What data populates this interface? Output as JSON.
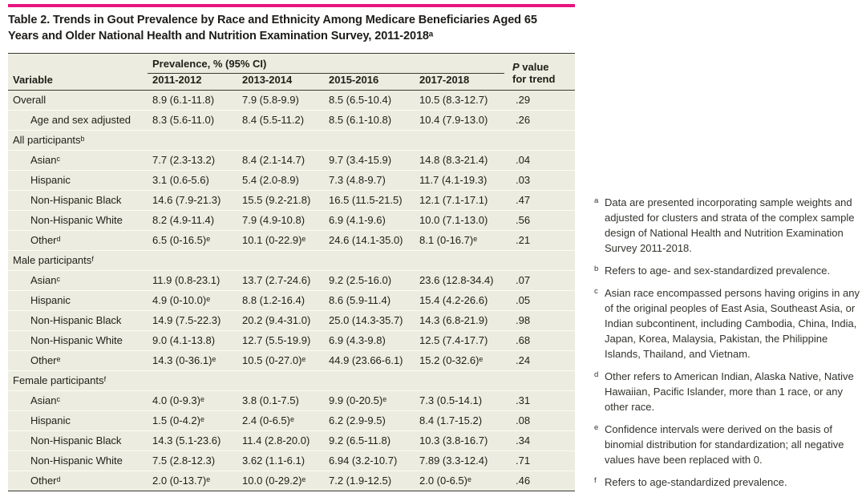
{
  "title": "Table 2. Trends in Gout Prevalence by Race and Ethnicity Among Medicare Beneficiaries Aged 65 Years and Older National Health and Nutrition Examination Survey, 2011-2018ᵃ",
  "colors": {
    "accent": "#e8147f",
    "table_bg": "#ecede0",
    "rule_dark": "#3a392f",
    "row_separator": "#fcfcf5",
    "text": "#21201a"
  },
  "table": {
    "header": {
      "variable": "Variable",
      "prevalence_span": "Prevalence, % (95% CI)",
      "years": [
        "2011-2012",
        "2013-2014",
        "2015-2016",
        "2017-2018"
      ],
      "p_italic": "P",
      "p_rest": " value",
      "p_line2": "for trend"
    },
    "rows": [
      {
        "label": "Overall",
        "indent": false,
        "section": false,
        "values": [
          "8.9 (6.1-11.8)",
          "7.9 (5.8-9.9)",
          "8.5 (6.5-10.4)",
          "10.5 (8.3-12.7)"
        ],
        "p": ".29"
      },
      {
        "label": "Age and sex adjusted",
        "indent": true,
        "section": false,
        "values": [
          "8.3 (5.6-11.0)",
          "8.4 (5.5-11.2)",
          "8.5 (6.1-10.8)",
          "10.4 (7.9-13.0)"
        ],
        "p": ".26"
      },
      {
        "label": "All participantsᵇ",
        "indent": false,
        "section": true,
        "values": [],
        "p": ""
      },
      {
        "label": "Asianᶜ",
        "indent": true,
        "section": false,
        "values": [
          "7.7 (2.3-13.2)",
          "8.4 (2.1-14.7)",
          "9.7 (3.4-15.9)",
          "14.8 (8.3-21.4)"
        ],
        "p": ".04"
      },
      {
        "label": "Hispanic",
        "indent": true,
        "section": false,
        "values": [
          "3.1 (0.6-5.6)",
          "5.4 (2.0-8.9)",
          "7.3 (4.8-9.7)",
          "11.7 (4.1-19.3)"
        ],
        "p": ".03"
      },
      {
        "label": "Non-Hispanic Black",
        "indent": true,
        "section": false,
        "values": [
          "14.6 (7.9-21.3)",
          "15.5 (9.2-21.8)",
          "16.5 (11.5-21.5)",
          "12.1 (7.1-17.1)"
        ],
        "p": ".47"
      },
      {
        "label": "Non-Hispanic White",
        "indent": true,
        "section": false,
        "values": [
          "8.2 (4.9-11.4)",
          "7.9 (4.9-10.8)",
          "6.9 (4.1-9.6)",
          "10.0 (7.1-13.0)"
        ],
        "p": ".56"
      },
      {
        "label": "Otherᵈ",
        "indent": true,
        "section": false,
        "values": [
          "6.5 (0-16.5)ᵉ",
          "10.1 (0-22.9)ᵉ",
          "24.6 (14.1-35.0)",
          "8.1 (0-16.7)ᵉ"
        ],
        "p": ".21"
      },
      {
        "label": "Male participantsᶠ",
        "indent": false,
        "section": true,
        "values": [],
        "p": ""
      },
      {
        "label": "Asianᶜ",
        "indent": true,
        "section": false,
        "values": [
          "11.9 (0.8-23.1)",
          "13.7 (2.7-24.6)",
          "9.2 (2.5-16.0)",
          "23.6 (12.8-34.4)"
        ],
        "p": ".07"
      },
      {
        "label": "Hispanic",
        "indent": true,
        "section": false,
        "values": [
          "4.9 (0-10.0)ᵉ",
          "8.8 (1.2-16.4)",
          "8.6 (5.9-11.4)",
          "15.4 (4.2-26.6)"
        ],
        "p": ".05"
      },
      {
        "label": "Non-Hispanic Black",
        "indent": true,
        "section": false,
        "values": [
          "14.9 (7.5-22.3)",
          "20.2 (9.4-31.0)",
          "25.0 (14.3-35.7)",
          "14.3 (6.8-21.9)"
        ],
        "p": ".98"
      },
      {
        "label": "Non-Hispanic White",
        "indent": true,
        "section": false,
        "values": [
          "9.0 (4.1-13.8)",
          "12.7 (5.5-19.9)",
          "6.9 (4.3-9.8)",
          "12.5 (7.4-17.7)"
        ],
        "p": ".68"
      },
      {
        "label": "Otherᵉ",
        "indent": true,
        "section": false,
        "values": [
          "14.3 (0-36.1)ᵉ",
          "10.5 (0-27.0)ᵉ",
          "44.9 (23.66-6.1)",
          "15.2 (0-32.6)ᵉ"
        ],
        "p": ".24"
      },
      {
        "label": "Female participantsᶠ",
        "indent": false,
        "section": true,
        "values": [],
        "p": ""
      },
      {
        "label": "Asianᶜ",
        "indent": true,
        "section": false,
        "values": [
          "4.0 (0-9.3)ᵉ",
          "3.8 (0.1-7.5)",
          "9.9 (0-20.5)ᵉ",
          "7.3 (0.5-14.1)"
        ],
        "p": ".31"
      },
      {
        "label": "Hispanic",
        "indent": true,
        "section": false,
        "values": [
          "1.5 (0-4.2)ᵉ",
          "2.4 (0-6.5)ᵉ",
          "6.2 (2.9-9.5)",
          "8.4 (1.7-15.2)"
        ],
        "p": ".08"
      },
      {
        "label": "Non-Hispanic Black",
        "indent": true,
        "section": false,
        "values": [
          "14.3 (5.1-23.6)",
          "11.4 (2.8-20.0)",
          "9.2 (6.5-11.8)",
          "10.3 (3.8-16.7)"
        ],
        "p": ".34"
      },
      {
        "label": "Non-Hispanic White",
        "indent": true,
        "section": false,
        "values": [
          "7.5 (2.8-12.3)",
          "3.62 (1.1-6.1)",
          "6.94 (3.2-10.7)",
          "7.89 (3.3-12.4)"
        ],
        "p": ".71"
      },
      {
        "label": "Otherᵈ",
        "indent": true,
        "section": false,
        "values": [
          "2.0 (0-13.7)ᵉ",
          "10.0 (0-29.2)ᵉ",
          "7.2 (1.9-12.5)",
          "2.0 (0-6.5)ᵉ"
        ],
        "p": ".46"
      }
    ]
  },
  "footnotes": [
    {
      "marker": "a",
      "text": "Data are presented incorporating sample weights and adjusted for clusters and strata of the complex sample design of National Health and Nutrition Examination Survey 2011-2018."
    },
    {
      "marker": "b",
      "text": "Refers to age- and sex-standardized prevalence."
    },
    {
      "marker": "c",
      "text": "Asian race encompassed persons having origins in any of the original peoples of East Asia, Southeast Asia, or Indian subcontinent, including Cambodia, China, India, Japan, Korea, Malaysia, Pakistan, the Philippine Islands, Thailand, and Vietnam."
    },
    {
      "marker": "d",
      "text": "Other refers to American Indian, Alaska Native, Native Hawaiian, Pacific Islander, more than 1 race, or any other race."
    },
    {
      "marker": "e",
      "text": "Confidence intervals were derived on the basis of binomial distribution for standardization; all negative values have been replaced with 0."
    },
    {
      "marker": "f",
      "text": "Refers to age-standardized prevalence."
    }
  ]
}
